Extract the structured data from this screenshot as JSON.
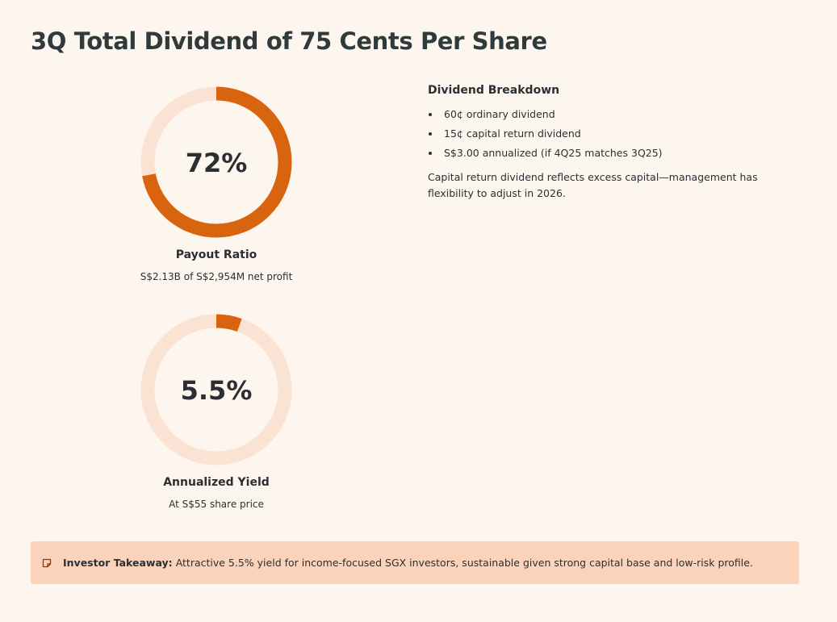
{
  "title": "3Q Total Dividend of 75 Cents Per Share",
  "chart_data": [
    {
      "type": "gauge",
      "value": 72,
      "max": 100,
      "display_value": "72%",
      "label": "Payout Ratio",
      "subtitle": "S$2.13B of S$2,954M net profit"
    },
    {
      "type": "gauge",
      "value": 5.5,
      "max": 100,
      "display_value": "5.5%",
      "label": "Annualized Yield",
      "subtitle": "At S$55 share price"
    }
  ],
  "breakdown": {
    "heading": "Dividend Breakdown",
    "items": [
      "60¢ ordinary dividend",
      "15¢ capital return dividend",
      "S$3.00 annualized (if 4Q25 matches 3Q25)"
    ],
    "note": "Capital return dividend reflects excess capital—management has flexibility to adjust in 2026."
  },
  "takeaway": {
    "icon": "note-icon",
    "label": "Investor Takeaway:",
    "text": "Attractive 5.5% yield for income-focused SGX investors, sustainable given strong capital base and low-risk profile."
  },
  "colors": {
    "accent": "#d9640f",
    "track": "#fbe3d3",
    "background": "#fdf6ee",
    "callout": "#fbd3bb"
  }
}
